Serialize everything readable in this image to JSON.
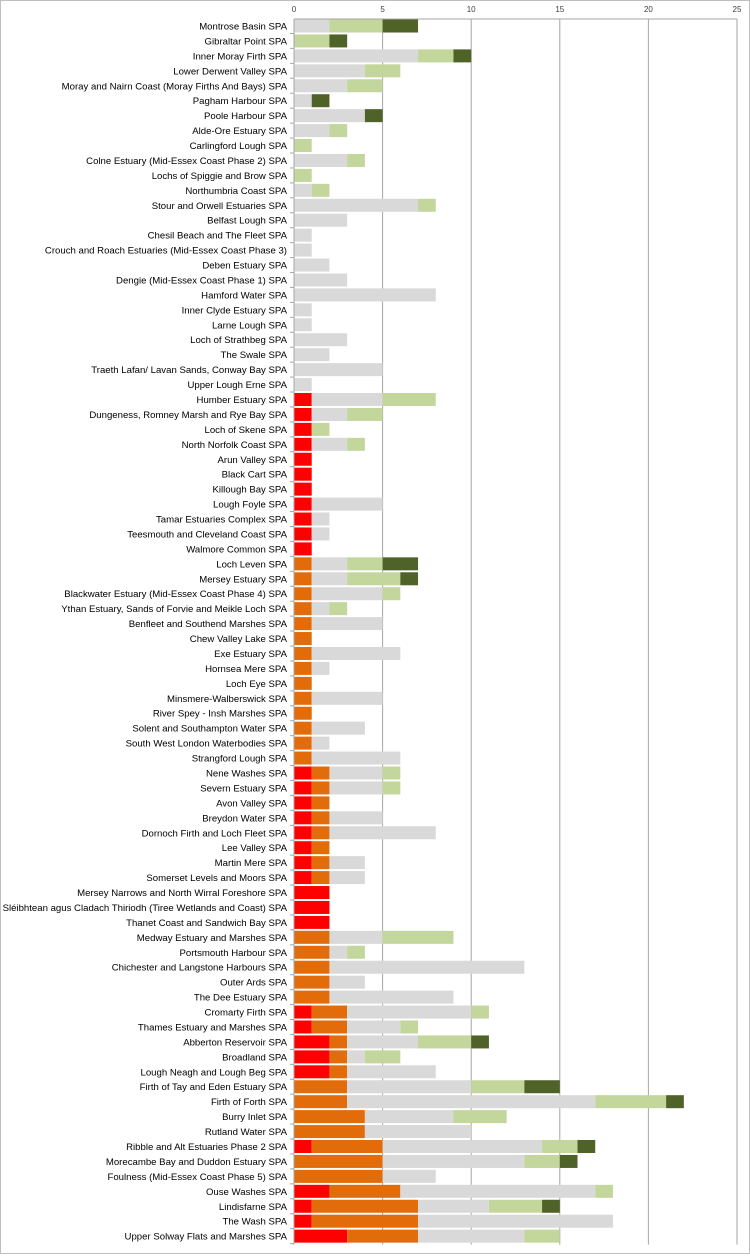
{
  "chart_data": {
    "type": "bar",
    "orientation": "horizontal",
    "stacked": true,
    "title": "",
    "xlabel": "",
    "ylabel": "",
    "xlim": [
      0,
      25
    ],
    "x_ticks": [
      "0",
      "5",
      "10",
      "15",
      "20",
      "25"
    ],
    "x_axis_position": "top",
    "grid": "vertical",
    "legend": "none",
    "categories": [
      "Montrose Basin SPA",
      "Gibraltar Point SPA",
      "Inner Moray Firth SPA",
      "Lower Derwent Valley SPA",
      "Moray and Nairn Coast (Moray Firths And Bays) SPA",
      "Pagham Harbour SPA",
      "Poole Harbour SPA",
      "Alde-Ore Estuary SPA",
      "Carlingford Lough SPA",
      "Colne Estuary (Mid-Essex Coast Phase 2) SPA",
      "Lochs of Spiggie and Brow SPA",
      "Northumbria Coast SPA",
      "Stour and Orwell Estuaries SPA",
      "Belfast Lough SPA",
      "Chesil Beach and The Fleet SPA",
      "Crouch and Roach Estuaries (Mid-Essex Coast Phase 3)",
      "Deben Estuary SPA",
      "Dengie (Mid-Essex Coast Phase 1) SPA",
      "Hamford Water SPA",
      "Inner Clyde Estuary SPA",
      "Larne Lough SPA",
      "Loch of Strathbeg SPA",
      "The Swale SPA",
      "Traeth Lafan/ Lavan Sands, Conway Bay SPA",
      "Upper Lough Erne SPA",
      "Humber Estuary SPA",
      "Dungeness, Romney Marsh and Rye Bay SPA",
      "Loch of Skene SPA",
      "North Norfolk Coast SPA",
      "Arun Valley SPA",
      "Black Cart SPA",
      "Killough Bay SPA",
      "Lough Foyle SPA",
      "Tamar Estuaries Complex SPA",
      "Teesmouth and Cleveland Coast SPA",
      "Walmore Common SPA",
      "Loch Leven SPA",
      "Mersey Estuary SPA",
      "Blackwater Estuary (Mid-Essex Coast Phase 4) SPA",
      "Ythan Estuary, Sands of Forvie and Meikle Loch SPA",
      "Benfleet and Southend Marshes SPA",
      "Chew Valley Lake SPA",
      "Exe Estuary SPA",
      "Hornsea Mere SPA",
      "Loch Eye SPA",
      "Minsmere-Walberswick SPA",
      "River Spey - Insh Marshes SPA",
      "Solent and Southampton Water SPA",
      "South West London Waterbodies SPA",
      "Strangford Lough SPA",
      "Nene Washes SPA",
      "Severn Estuary SPA",
      "Avon Valley SPA",
      "Breydon Water SPA",
      "Dornoch Firth and Loch Fleet SPA",
      "Lee Valley SPA",
      "Martin Mere SPA",
      "Somerset Levels and Moors SPA",
      "Mersey Narrows and North Wirral Foreshore SPA",
      "Sléibhtean agus Cladach Thiriodh (Tiree Wetlands and Coast) SPA",
      "Thanet Coast and Sandwich Bay SPA",
      "Medway Estuary and Marshes SPA",
      "Portsmouth Harbour SPA",
      "Chichester and Langstone Harbours SPA",
      "Outer Ards SPA",
      "The Dee Estuary SPA",
      "Cromarty Firth SPA",
      "Thames Estuary and Marshes SPA",
      "Abberton Reservoir SPA",
      "Broadland SPA",
      "Lough Neagh and Lough Beg SPA",
      "Firth of Tay and Eden Estuary SPA",
      "Firth of Forth SPA",
      "Burry Inlet SPA",
      "Rutland Water SPA",
      "Ribble and Alt Estuaries Phase 2 SPA",
      "Morecambe Bay and Duddon Estuary SPA",
      "Foulness (Mid-Essex Coast Phase 5) SPA",
      "Ouse Washes SPA",
      "Lindisfarne SPA",
      "The Wash SPA",
      "Upper Solway Flats and Marshes SPA"
    ],
    "series": [
      {
        "color": "#ff0000",
        "values": [
          0,
          0,
          0,
          0,
          0,
          0,
          0,
          0,
          0,
          0,
          0,
          0,
          0,
          0,
          0,
          0,
          0,
          0,
          0,
          0,
          0,
          0,
          0,
          0,
          0,
          1,
          1,
          1,
          1,
          1,
          1,
          1,
          1,
          1,
          1,
          1,
          0,
          0,
          0,
          0,
          0,
          0,
          0,
          0,
          0,
          0,
          0,
          0,
          0,
          0,
          1,
          1,
          1,
          1,
          1,
          1,
          1,
          1,
          2,
          2,
          2,
          0,
          0,
          0,
          0,
          0,
          1,
          1,
          2,
          2,
          2,
          0,
          0,
          0,
          0,
          1,
          0,
          0,
          2,
          1,
          1,
          3
        ]
      },
      {
        "color": "#e36c0a",
        "values": [
          0,
          0,
          0,
          0,
          0,
          0,
          0,
          0,
          0,
          0,
          0,
          0,
          0,
          0,
          0,
          0,
          0,
          0,
          0,
          0,
          0,
          0,
          0,
          0,
          0,
          0,
          0,
          0,
          0,
          0,
          0,
          0,
          0,
          0,
          0,
          0,
          1,
          1,
          1,
          1,
          1,
          1,
          1,
          1,
          1,
          1,
          1,
          1,
          1,
          1,
          1,
          1,
          1,
          1,
          1,
          1,
          1,
          1,
          0,
          0,
          0,
          2,
          2,
          2,
          2,
          2,
          2,
          2,
          1,
          1,
          1,
          3,
          3,
          4,
          4,
          4,
          5,
          5,
          4,
          6,
          6,
          4
        ]
      },
      {
        "color": "#d9d9d9",
        "values": [
          2,
          0,
          7,
          4,
          3,
          1,
          4,
          2,
          0,
          3,
          0,
          1,
          7,
          3,
          1,
          1,
          2,
          3,
          8,
          1,
          1,
          3,
          2,
          5,
          1,
          4,
          2,
          0,
          2,
          0,
          0,
          0,
          4,
          1,
          1,
          0,
          2,
          2,
          4,
          1,
          4,
          0,
          5,
          1,
          0,
          4,
          0,
          3,
          1,
          5,
          3,
          3,
          0,
          3,
          6,
          0,
          2,
          2,
          0,
          0,
          0,
          3,
          1,
          11,
          2,
          7,
          7,
          3,
          4,
          1,
          5,
          7,
          14,
          5,
          6,
          9,
          8,
          3,
          11,
          4,
          11,
          6
        ]
      },
      {
        "color": "#c3d69b",
        "values": [
          3,
          2,
          2,
          2,
          2,
          0,
          0,
          1,
          1,
          1,
          1,
          1,
          1,
          0,
          0,
          0,
          0,
          0,
          0,
          0,
          0,
          0,
          0,
          0,
          0,
          3,
          2,
          1,
          1,
          0,
          0,
          0,
          0,
          0,
          0,
          0,
          2,
          3,
          1,
          1,
          0,
          0,
          0,
          0,
          0,
          0,
          0,
          0,
          0,
          0,
          1,
          1,
          0,
          0,
          0,
          0,
          0,
          0,
          0,
          0,
          0,
          4,
          1,
          0,
          0,
          0,
          1,
          1,
          3,
          2,
          0,
          3,
          4,
          3,
          0,
          2,
          2,
          0,
          1,
          3,
          0,
          2
        ]
      },
      {
        "color": "#4f6228",
        "values": [
          2,
          1,
          1,
          0,
          0,
          1,
          1,
          0,
          0,
          0,
          0,
          0,
          0,
          0,
          0,
          0,
          0,
          0,
          0,
          0,
          0,
          0,
          0,
          0,
          0,
          0,
          0,
          0,
          0,
          0,
          0,
          0,
          0,
          0,
          0,
          0,
          2,
          1,
          0,
          0,
          0,
          0,
          0,
          0,
          0,
          0,
          0,
          0,
          0,
          0,
          0,
          0,
          0,
          0,
          0,
          0,
          0,
          0,
          0,
          0,
          0,
          0,
          0,
          0,
          0,
          0,
          0,
          0,
          1,
          0,
          0,
          2,
          1,
          0,
          0,
          1,
          1,
          0,
          0,
          1,
          0,
          0
        ]
      }
    ]
  }
}
